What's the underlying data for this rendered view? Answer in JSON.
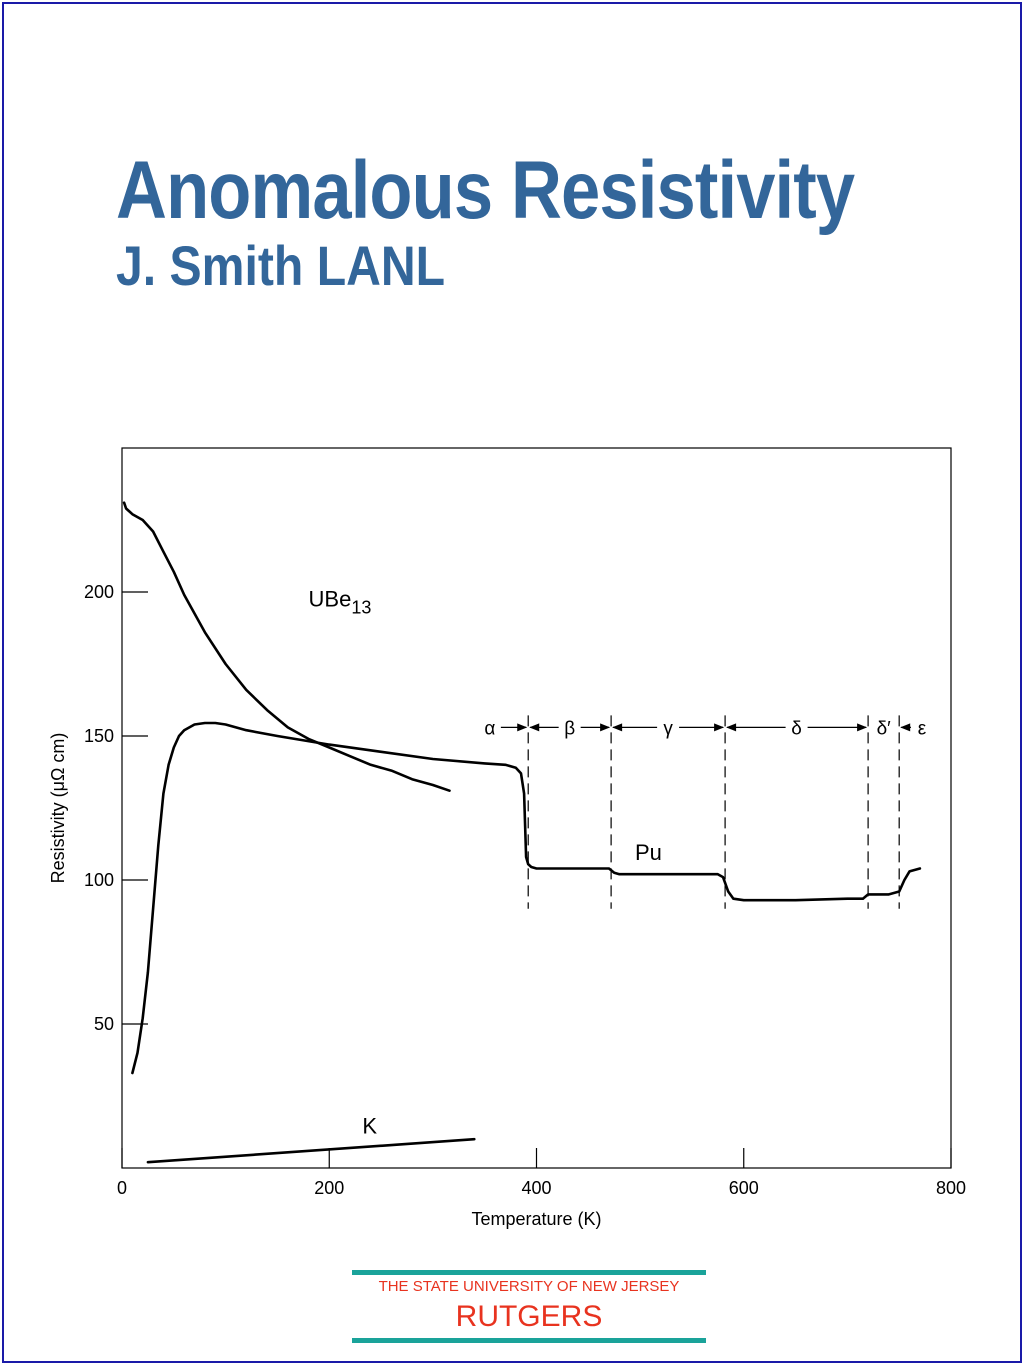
{
  "slide": {
    "title": "Anomalous Resistivity",
    "subtitle": "J. Smith LANL"
  },
  "footer": {
    "line1": "THE STATE UNIVERSITY OF NEW JERSEY",
    "line2": "RUTGERS"
  },
  "colors": {
    "title": "#33669a",
    "frame": "#1a1aa8",
    "footer_text": "#e8331f",
    "footer_bar": "#1aa39a"
  },
  "chart_data": {
    "type": "line",
    "xlabel": "Temperature (K)",
    "ylabel": "Resistivity (μΩ cm)",
    "xlim": [
      0,
      800
    ],
    "ylim": [
      0,
      250
    ],
    "xticks": [
      0,
      200,
      400,
      600,
      800
    ],
    "yticks": [
      50,
      100,
      150,
      200
    ],
    "grid": false,
    "series": [
      {
        "name": "UBe",
        "subscript": "13",
        "x": [
          2,
          4,
          7,
          10,
          20,
          30,
          40,
          50,
          60,
          80,
          100,
          120,
          140,
          160,
          180,
          200,
          220,
          240,
          260,
          280,
          300,
          316
        ],
        "y": [
          231,
          229,
          228,
          227,
          225,
          221,
          214,
          207,
          199,
          186,
          175,
          166,
          159,
          153,
          149,
          146,
          143,
          140,
          138,
          135,
          133,
          131
        ]
      },
      {
        "name": "Pu",
        "x": [
          10,
          15,
          20,
          25,
          30,
          35,
          40,
          45,
          50,
          55,
          60,
          70,
          80,
          90,
          100,
          120,
          150,
          200,
          250,
          300,
          350,
          370,
          380,
          385,
          388,
          390,
          392,
          395,
          400,
          420,
          450,
          470,
          475,
          480,
          500,
          540,
          575,
          580,
          585,
          590,
          600,
          650,
          700,
          715,
          720,
          740,
          750,
          755,
          760,
          770
        ],
        "y": [
          33,
          40,
          52,
          68,
          90,
          112,
          130,
          140,
          146,
          150,
          152,
          154,
          154.5,
          154.5,
          154,
          152,
          150,
          147,
          144.5,
          142,
          140.5,
          140,
          139,
          137,
          130,
          108,
          105.5,
          104.5,
          104,
          104,
          104,
          104,
          102.5,
          102,
          102,
          102,
          102,
          101,
          96,
          93.5,
          93,
          93,
          93.5,
          93.5,
          95,
          95,
          96,
          100,
          103,
          104
        ]
      },
      {
        "name": "K",
        "x": [
          25,
          340
        ],
        "y": [
          2,
          10
        ]
      }
    ],
    "phase_boundaries": [
      392,
      472,
      582,
      720,
      750
    ],
    "phases": [
      {
        "label": "α",
        "x": 355
      },
      {
        "label": "β",
        "x": 432
      },
      {
        "label": "γ",
        "x": 527
      },
      {
        "label": "δ",
        "x": 651
      },
      {
        "label": "δ′",
        "x": 735
      },
      {
        "label": "ε",
        "x": 772
      }
    ],
    "phase_row_y": 153
  }
}
